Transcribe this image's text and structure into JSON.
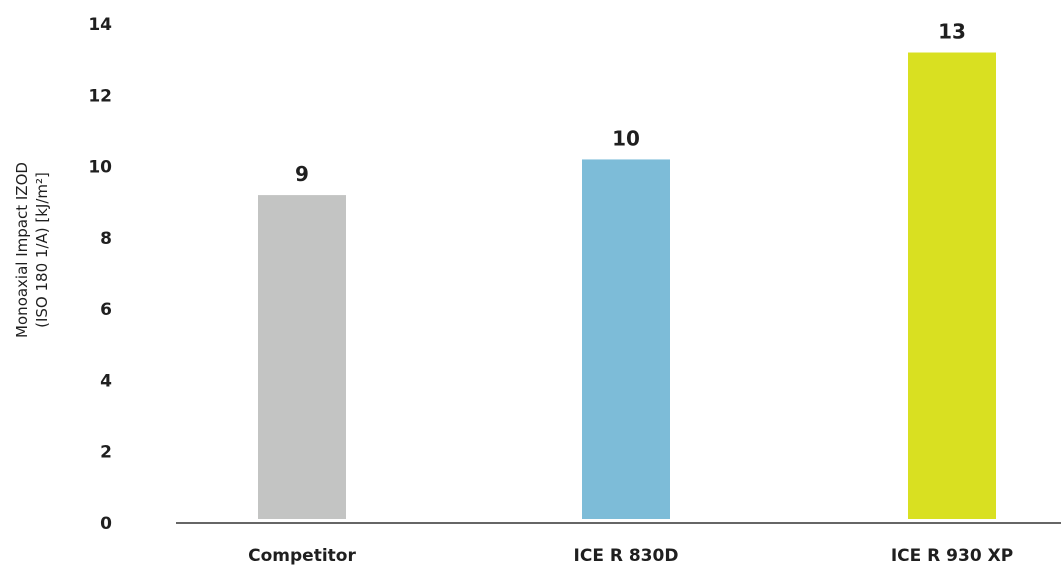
{
  "chart_data": {
    "type": "bar",
    "categories": [
      "Competitor",
      "ICE R 830D",
      "ICE R 930 XP"
    ],
    "values": [
      9.2,
      10.2,
      13.2
    ],
    "data_labels": [
      "9",
      "10",
      "13"
    ],
    "colors": [
      "#c3c4c3",
      "#7dbcd8",
      "#d9e021"
    ],
    "ylabel_line1": "Monoaxial Impact  IZOD",
    "ylabel_line2": "(ISO 180 1/A) [kJ/m²]",
    "xlabel": "",
    "ylim": [
      0,
      14
    ],
    "y_ticks": [
      0,
      2,
      4,
      6,
      8,
      10,
      12,
      14
    ],
    "grid": false,
    "axis_color": "#333333"
  }
}
